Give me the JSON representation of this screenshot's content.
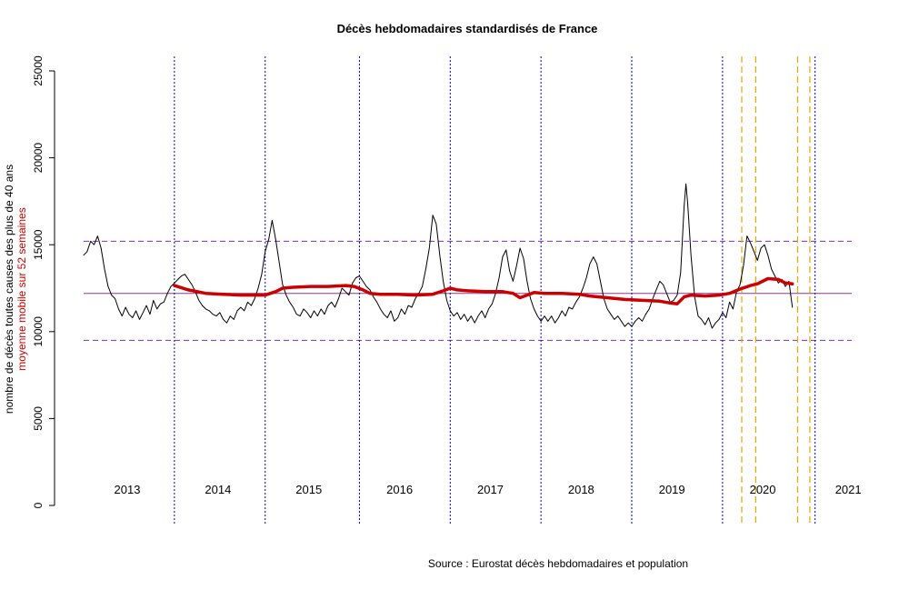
{
  "chart_data": {
    "type": "line",
    "title": "Décès hebdomadaires standardisés de France",
    "ylabel": "nombre de décès toutes causes des plus de 40 ans",
    "ylabel_secondary": "moyenne mobile sur 52 semaines",
    "source": "Source : Eurostat décès hebdomadaires et population",
    "ylim": [
      0,
      25000
    ],
    "y_ticks": [
      "0",
      "5000",
      "10000",
      "15000",
      "20000",
      "25000"
    ],
    "y_tick_values": [
      0,
      5000,
      10000,
      15000,
      20000,
      25000
    ],
    "x_range_weeks": [
      0,
      440
    ],
    "year_labels": [
      {
        "text": "2013",
        "week": 25
      },
      {
        "text": "2014",
        "week": 77
      },
      {
        "text": "2015",
        "week": 129
      },
      {
        "text": "2016",
        "week": 181
      },
      {
        "text": "2017",
        "week": 233
      },
      {
        "text": "2018",
        "week": 285
      },
      {
        "text": "2019",
        "week": 337
      },
      {
        "text": "2020",
        "week": 389
      },
      {
        "text": "2021",
        "week": 438
      }
    ],
    "year_boundaries_weeks": [
      52,
      104,
      158,
      210,
      262,
      314,
      366,
      419
    ],
    "highlight_lines_weeks": [
      377,
      385,
      409,
      416
    ],
    "reference_lines": {
      "mean": 12200,
      "upper": 15200,
      "lower": 9500
    },
    "colors": {
      "weekly": "#000000",
      "moving_average": "#cc0000",
      "year_boundary": "#0000cc",
      "highlight": "#e6a800",
      "mean_line": "#8b3a8b",
      "band_lines": "#7b2fbf"
    },
    "series": [
      {
        "name": "décès hebdomadaires",
        "points": [
          [
            0,
            14400
          ],
          [
            2,
            14600
          ],
          [
            4,
            15200
          ],
          [
            6,
            15000
          ],
          [
            8,
            15500
          ],
          [
            10,
            14800
          ],
          [
            12,
            13600
          ],
          [
            14,
            12600
          ],
          [
            16,
            12100
          ],
          [
            18,
            11900
          ],
          [
            20,
            11300
          ],
          [
            22,
            10900
          ],
          [
            24,
            11400
          ],
          [
            26,
            11000
          ],
          [
            28,
            10800
          ],
          [
            30,
            11200
          ],
          [
            32,
            10700
          ],
          [
            34,
            11100
          ],
          [
            36,
            11500
          ],
          [
            38,
            11000
          ],
          [
            40,
            11800
          ],
          [
            42,
            11300
          ],
          [
            44,
            11600
          ],
          [
            46,
            11700
          ],
          [
            48,
            12200
          ],
          [
            50,
            12600
          ],
          [
            52,
            12800
          ],
          [
            54,
            13000
          ],
          [
            56,
            13200
          ],
          [
            58,
            13300
          ],
          [
            60,
            13000
          ],
          [
            62,
            12700
          ],
          [
            64,
            12300
          ],
          [
            66,
            11800
          ],
          [
            68,
            11500
          ],
          [
            70,
            11300
          ],
          [
            72,
            11200
          ],
          [
            74,
            11000
          ],
          [
            76,
            10900
          ],
          [
            78,
            11100
          ],
          [
            80,
            10700
          ],
          [
            82,
            10500
          ],
          [
            84,
            10900
          ],
          [
            86,
            10700
          ],
          [
            88,
            11200
          ],
          [
            90,
            11400
          ],
          [
            92,
            11200
          ],
          [
            94,
            11700
          ],
          [
            96,
            11500
          ],
          [
            98,
            11900
          ],
          [
            100,
            12500
          ],
          [
            102,
            13300
          ],
          [
            104,
            14600
          ],
          [
            106,
            15300
          ],
          [
            108,
            16400
          ],
          [
            110,
            15300
          ],
          [
            112,
            14000
          ],
          [
            114,
            12700
          ],
          [
            116,
            12100
          ],
          [
            118,
            11700
          ],
          [
            120,
            11400
          ],
          [
            122,
            11000
          ],
          [
            124,
            10900
          ],
          [
            126,
            11300
          ],
          [
            128,
            11100
          ],
          [
            130,
            10800
          ],
          [
            132,
            11200
          ],
          [
            134,
            10900
          ],
          [
            136,
            11300
          ],
          [
            138,
            11000
          ],
          [
            140,
            11500
          ],
          [
            142,
            11700
          ],
          [
            144,
            11400
          ],
          [
            146,
            11900
          ],
          [
            148,
            12500
          ],
          [
            150,
            12300
          ],
          [
            152,
            12100
          ],
          [
            154,
            12800
          ],
          [
            156,
            13100
          ],
          [
            158,
            13200
          ],
          [
            160,
            12900
          ],
          [
            162,
            12600
          ],
          [
            164,
            12400
          ],
          [
            166,
            12000
          ],
          [
            168,
            11700
          ],
          [
            170,
            11300
          ],
          [
            172,
            11000
          ],
          [
            174,
            10800
          ],
          [
            176,
            11200
          ],
          [
            178,
            10600
          ],
          [
            180,
            10800
          ],
          [
            182,
            11300
          ],
          [
            184,
            11000
          ],
          [
            186,
            11500
          ],
          [
            188,
            11400
          ],
          [
            190,
            11900
          ],
          [
            192,
            12200
          ],
          [
            194,
            12600
          ],
          [
            196,
            13600
          ],
          [
            198,
            14800
          ],
          [
            200,
            16700
          ],
          [
            202,
            16200
          ],
          [
            204,
            14400
          ],
          [
            206,
            12900
          ],
          [
            208,
            11800
          ],
          [
            210,
            11200
          ],
          [
            212,
            10900
          ],
          [
            214,
            11100
          ],
          [
            216,
            10700
          ],
          [
            218,
            11000
          ],
          [
            220,
            10600
          ],
          [
            222,
            10900
          ],
          [
            224,
            10500
          ],
          [
            226,
            10900
          ],
          [
            228,
            11200
          ],
          [
            230,
            10800
          ],
          [
            232,
            11300
          ],
          [
            234,
            11600
          ],
          [
            236,
            12200
          ],
          [
            238,
            13100
          ],
          [
            240,
            14300
          ],
          [
            242,
            14700
          ],
          [
            244,
            13500
          ],
          [
            246,
            12900
          ],
          [
            248,
            13800
          ],
          [
            250,
            14800
          ],
          [
            252,
            14200
          ],
          [
            254,
            12900
          ],
          [
            256,
            11900
          ],
          [
            258,
            11300
          ],
          [
            260,
            10900
          ],
          [
            262,
            10600
          ],
          [
            264,
            10900
          ],
          [
            266,
            10600
          ],
          [
            268,
            10900
          ],
          [
            270,
            10500
          ],
          [
            272,
            10800
          ],
          [
            274,
            11200
          ],
          [
            276,
            10900
          ],
          [
            278,
            11400
          ],
          [
            280,
            11300
          ],
          [
            282,
            11700
          ],
          [
            284,
            12000
          ],
          [
            286,
            12500
          ],
          [
            288,
            13100
          ],
          [
            290,
            13900
          ],
          [
            292,
            14300
          ],
          [
            294,
            13900
          ],
          [
            296,
            12900
          ],
          [
            298,
            11900
          ],
          [
            300,
            11300
          ],
          [
            302,
            11000
          ],
          [
            304,
            10700
          ],
          [
            306,
            10900
          ],
          [
            308,
            10600
          ],
          [
            310,
            10300
          ],
          [
            312,
            10500
          ],
          [
            314,
            10300
          ],
          [
            316,
            10600
          ],
          [
            318,
            10800
          ],
          [
            320,
            10600
          ],
          [
            322,
            11000
          ],
          [
            324,
            11300
          ],
          [
            326,
            11900
          ],
          [
            328,
            12400
          ],
          [
            330,
            12900
          ],
          [
            332,
            12700
          ],
          [
            334,
            12200
          ],
          [
            336,
            11700
          ],
          [
            338,
            11800
          ],
          [
            340,
            12100
          ],
          [
            342,
            13400
          ],
          [
            344,
            17200
          ],
          [
            345,
            18500
          ],
          [
            346,
            17400
          ],
          [
            348,
            14300
          ],
          [
            350,
            12000
          ],
          [
            352,
            10900
          ],
          [
            354,
            10700
          ],
          [
            356,
            10400
          ],
          [
            358,
            10800
          ],
          [
            360,
            10200
          ],
          [
            362,
            10500
          ],
          [
            364,
            10700
          ],
          [
            366,
            11100
          ],
          [
            368,
            10800
          ],
          [
            370,
            11700
          ],
          [
            372,
            11300
          ],
          [
            374,
            12300
          ],
          [
            376,
            12700
          ],
          [
            378,
            13800
          ],
          [
            380,
            15500
          ],
          [
            382,
            15100
          ],
          [
            384,
            14600
          ],
          [
            386,
            14100
          ],
          [
            388,
            14800
          ],
          [
            390,
            15000
          ],
          [
            392,
            14400
          ],
          [
            394,
            13600
          ],
          [
            396,
            13200
          ],
          [
            398,
            12800
          ],
          [
            400,
            13000
          ],
          [
            402,
            12600
          ],
          [
            404,
            12900
          ],
          [
            406,
            11400
          ]
        ]
      },
      {
        "name": "moyenne mobile sur 52 semaines",
        "points": [
          [
            52,
            12650
          ],
          [
            60,
            12400
          ],
          [
            70,
            12200
          ],
          [
            80,
            12150
          ],
          [
            90,
            12100
          ],
          [
            100,
            12100
          ],
          [
            104,
            12100
          ],
          [
            110,
            12300
          ],
          [
            114,
            12500
          ],
          [
            120,
            12550
          ],
          [
            130,
            12600
          ],
          [
            140,
            12600
          ],
          [
            150,
            12650
          ],
          [
            155,
            12600
          ],
          [
            160,
            12400
          ],
          [
            164,
            12200
          ],
          [
            170,
            12150
          ],
          [
            180,
            12150
          ],
          [
            190,
            12100
          ],
          [
            200,
            12150
          ],
          [
            206,
            12350
          ],
          [
            210,
            12500
          ],
          [
            214,
            12400
          ],
          [
            220,
            12350
          ],
          [
            230,
            12300
          ],
          [
            240,
            12300
          ],
          [
            246,
            12200
          ],
          [
            250,
            11950
          ],
          [
            254,
            12100
          ],
          [
            258,
            12250
          ],
          [
            264,
            12200
          ],
          [
            274,
            12200
          ],
          [
            284,
            12150
          ],
          [
            290,
            12050
          ],
          [
            300,
            11950
          ],
          [
            310,
            11850
          ],
          [
            320,
            11800
          ],
          [
            330,
            11750
          ],
          [
            336,
            11650
          ],
          [
            340,
            11600
          ],
          [
            344,
            12000
          ],
          [
            348,
            12100
          ],
          [
            356,
            12050
          ],
          [
            364,
            12100
          ],
          [
            370,
            12200
          ],
          [
            376,
            12450
          ],
          [
            382,
            12650
          ],
          [
            386,
            12750
          ],
          [
            392,
            13050
          ],
          [
            398,
            13000
          ],
          [
            402,
            12800
          ],
          [
            406,
            12750
          ]
        ]
      }
    ]
  }
}
